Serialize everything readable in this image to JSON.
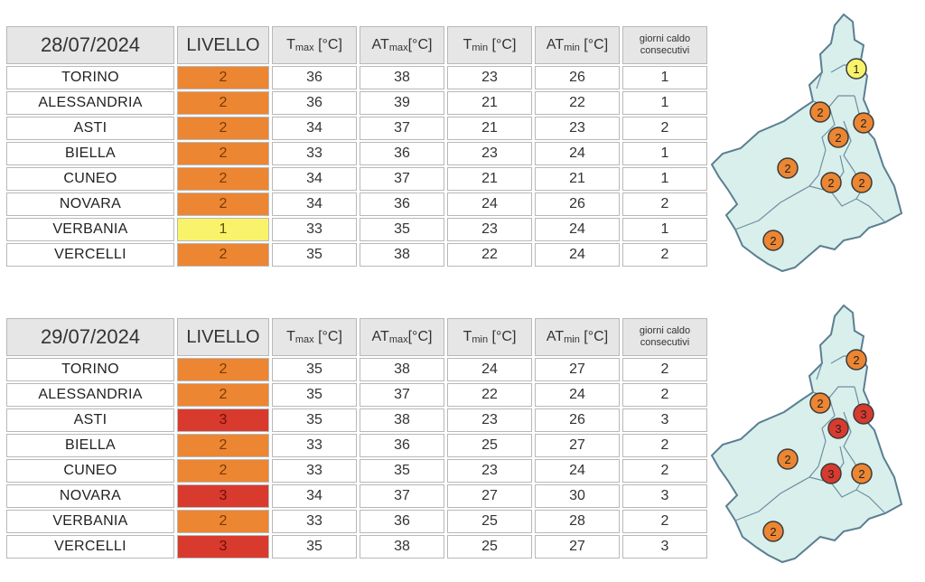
{
  "headers": {
    "livello": "LIVELLO",
    "tmax": "T",
    "tmax_sub": "max",
    "tmax_unit": " [°C]",
    "atmax": "AT",
    "atmax_sub": "max",
    "atmax_unit": "[°C]",
    "tmin": "T",
    "tmin_sub": "min",
    "tmin_unit": " [°C]",
    "atmin": "AT",
    "atmin_sub": "min",
    "atmin_unit": " [°C]",
    "giorni_line1": "giorni caldo",
    "giorni_line2": "consecutivi"
  },
  "level_colors": {
    "1": "#f9f36b",
    "2": "#ec8632",
    "3": "#d93a2e"
  },
  "days": [
    {
      "date": "28/07/2024",
      "rows": [
        {
          "city": "TORINO",
          "level": "2",
          "tmax": "36",
          "atmax": "38",
          "tmin": "23",
          "atmin": "26",
          "days": "1"
        },
        {
          "city": "ALESSANDRIA",
          "level": "2",
          "tmax": "36",
          "atmax": "39",
          "tmin": "21",
          "atmin": "22",
          "days": "1"
        },
        {
          "city": "ASTI",
          "level": "2",
          "tmax": "34",
          "atmax": "37",
          "tmin": "21",
          "atmin": "23",
          "days": "2"
        },
        {
          "city": "BIELLA",
          "level": "2",
          "tmax": "33",
          "atmax": "36",
          "tmin": "23",
          "atmin": "24",
          "days": "1"
        },
        {
          "city": "CUNEO",
          "level": "2",
          "tmax": "34",
          "atmax": "37",
          "tmin": "21",
          "atmin": "21",
          "days": "1"
        },
        {
          "city": "NOVARA",
          "level": "2",
          "tmax": "34",
          "atmax": "36",
          "tmin": "24",
          "atmin": "26",
          "days": "2"
        },
        {
          "city": "VERBANIA",
          "level": "1",
          "tmax": "33",
          "atmax": "35",
          "tmin": "23",
          "atmin": "24",
          "days": "1"
        },
        {
          "city": "VERCELLI",
          "level": "2",
          "tmax": "35",
          "atmax": "38",
          "tmin": "22",
          "atmin": "24",
          "days": "2"
        }
      ],
      "map_markers": {
        "verbania": "1",
        "biella": "2",
        "novara": "2",
        "vercelli": "2",
        "torino": "2",
        "asti": "2",
        "alessandria": "2",
        "cuneo": "2"
      }
    },
    {
      "date": "29/07/2024",
      "rows": [
        {
          "city": "TORINO",
          "level": "2",
          "tmax": "35",
          "atmax": "38",
          "tmin": "24",
          "atmin": "27",
          "days": "2"
        },
        {
          "city": "ALESSANDRIA",
          "level": "2",
          "tmax": "35",
          "atmax": "37",
          "tmin": "22",
          "atmin": "24",
          "days": "2"
        },
        {
          "city": "ASTI",
          "level": "3",
          "tmax": "35",
          "atmax": "38",
          "tmin": "23",
          "atmin": "26",
          "days": "3"
        },
        {
          "city": "BIELLA",
          "level": "2",
          "tmax": "33",
          "atmax": "36",
          "tmin": "25",
          "atmin": "27",
          "days": "2"
        },
        {
          "city": "CUNEO",
          "level": "2",
          "tmax": "33",
          "atmax": "35",
          "tmin": "23",
          "atmin": "24",
          "days": "2"
        },
        {
          "city": "NOVARA",
          "level": "3",
          "tmax": "34",
          "atmax": "37",
          "tmin": "27",
          "atmin": "30",
          "days": "3"
        },
        {
          "city": "VERBANIA",
          "level": "2",
          "tmax": "33",
          "atmax": "36",
          "tmin": "25",
          "atmin": "28",
          "days": "2"
        },
        {
          "city": "VERCELLI",
          "level": "3",
          "tmax": "35",
          "atmax": "38",
          "tmin": "25",
          "atmin": "27",
          "days": "3"
        }
      ],
      "map_markers": {
        "verbania": "2",
        "biella": "2",
        "novara": "3",
        "vercelli": "3",
        "torino": "2",
        "asti": "3",
        "alessandria": "2",
        "cuneo": "2"
      }
    }
  ]
}
